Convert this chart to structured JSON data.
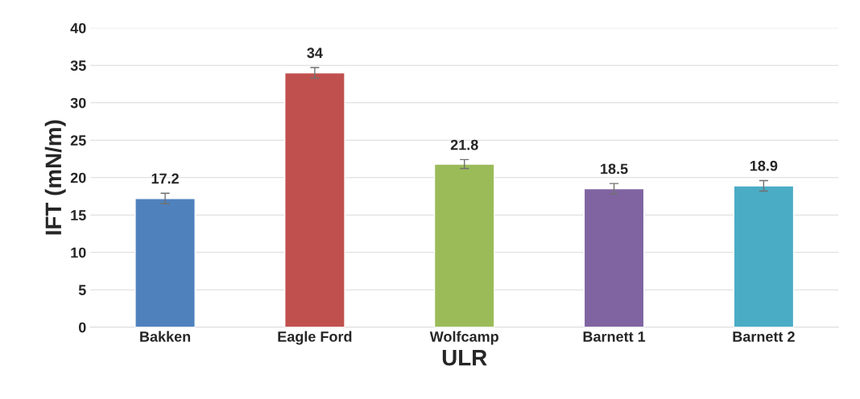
{
  "chart_data": {
    "type": "bar",
    "xlabel": "ULR",
    "ylabel": "IFT (mN/m)",
    "categories": [
      "Bakken",
      "Eagle Ford",
      "Wolfcamp",
      "Barnett 1",
      "Barnett 2"
    ],
    "values": [
      17.2,
      34,
      21.8,
      18.5,
      18.9
    ],
    "errors": [
      0.7,
      0.7,
      0.6,
      0.7,
      0.7
    ],
    "colors": [
      "#4f81bd",
      "#c0504d",
      "#9bbb59",
      "#8064a2",
      "#4bacc6"
    ],
    "ylim": [
      0,
      40
    ],
    "yticks": [
      0,
      5,
      10,
      15,
      20,
      25,
      30,
      35,
      40
    ],
    "grid": "y",
    "data_labels": true
  }
}
